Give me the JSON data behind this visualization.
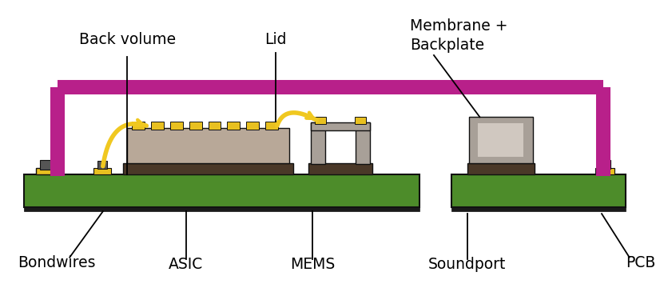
{
  "bg_color": "#ffffff",
  "pcb_color": "#4d8c2a",
  "pcb_outline": "#111111",
  "die_color": "#b8a898",
  "die_dark": "#4a3828",
  "pad_color": "#e8c020",
  "lid_color": "#a8a098",
  "magenta_color": "#b8208a",
  "wire_color": "#f0c820",
  "label_color": "#000000",
  "labels": {
    "back_volume": "Back volume",
    "lid": "Lid",
    "membrane": "Membrane +\nBackplate",
    "bondwires": "Bondwires",
    "asic": "ASIC",
    "mems": "MEMS",
    "soundport": "Soundport",
    "pcb": "PCB"
  }
}
